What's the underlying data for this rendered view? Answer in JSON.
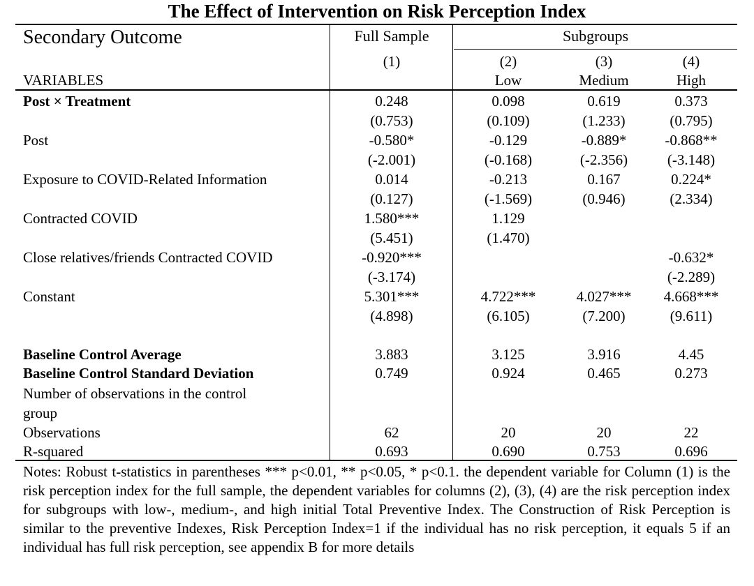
{
  "title": "The Effect of Intervention on Risk Perception Index",
  "header": {
    "outcome_label": "Secondary Outcome",
    "full_sample": "Full Sample",
    "subgroups": "Subgroups",
    "col_numbers": [
      "(1)",
      "(2)",
      "(3)",
      "(4)"
    ],
    "col_names": [
      "",
      "Low",
      "Medium",
      "High"
    ],
    "variables_label": "VARIABLES"
  },
  "rows": [
    {
      "label": "Post × Treatment",
      "bold": true,
      "coef": [
        "0.248",
        "0.098",
        "0.619",
        "0.373"
      ],
      "se": [
        "(0.753)",
        "(0.109)",
        "(1.233)",
        "(0.795)"
      ]
    },
    {
      "label": "Post",
      "coef": [
        "-0.580*",
        "-0.129",
        "-0.889*",
        "-0.868**"
      ],
      "se": [
        "(-2.001)",
        "(-0.168)",
        "(-2.356)",
        "(-3.148)"
      ]
    },
    {
      "label": "Exposure to COVID-Related Information",
      "coef": [
        "0.014",
        "-0.213",
        "0.167",
        "0.224*"
      ],
      "se": [
        "(0.127)",
        "(-1.569)",
        "(0.946)",
        "(2.334)"
      ]
    },
    {
      "label": "Contracted COVID",
      "coef": [
        "1.580***",
        "1.129",
        "",
        ""
      ],
      "se": [
        "(5.451)",
        "(1.470)",
        "",
        ""
      ]
    },
    {
      "label": "Close relatives/friends Contracted COVID",
      "coef": [
        "-0.920***",
        "",
        "",
        "-0.632*"
      ],
      "se": [
        "(-3.174)",
        "",
        "",
        "(-2.289)"
      ]
    },
    {
      "label": "Constant",
      "coef": [
        "5.301***",
        "4.722***",
        "4.027***",
        "4.668***"
      ],
      "se": [
        "(4.898)",
        "(6.105)",
        "(7.200)",
        "(9.611)"
      ]
    }
  ],
  "stats": {
    "baseline_avg": {
      "label": "Baseline Control Average",
      "values": [
        "3.883",
        "3.125",
        "3.916",
        "4.45"
      ]
    },
    "baseline_sd": {
      "label": "Baseline Control Standard Deviation",
      "values": [
        "0.749",
        "0.924",
        "0.465",
        "0.273"
      ]
    },
    "n_control": {
      "label_line1": "Number of observations in the control",
      "label_line2": "group"
    },
    "observations": {
      "label": "Observations",
      "values": [
        "62",
        "20",
        "20",
        "22"
      ]
    },
    "r_squared": {
      "label": "R-squared",
      "values": [
        "0.693",
        "0.690",
        "0.753",
        "0.696"
      ]
    }
  },
  "notes": "Notes: Robust t-statistics in parentheses *** p<0.01, ** p<0.05, * p<0.1. the dependent variable for Column (1) is the risk perception index for the full sample, the dependent variables for columns (2), (3), (4) are the risk perception index for subgroups with low-, medium-, and high initial Total Preventive Index. The Construction of Risk Perception is similar to the preventive Indexes, Risk Perception Index=1 if the individual has no risk perception, it equals 5 if an individual has full risk perception, see appendix B for more details"
}
